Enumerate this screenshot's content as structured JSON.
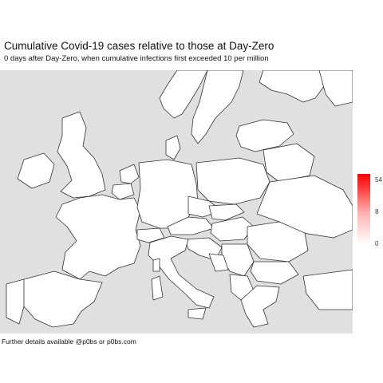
{
  "header": {
    "title": "Cumulative Covid-19 cases relative to those at Day-Zero",
    "subtitle": "0 days after Day-Zero, when cumulative infections first exceeded 10 per million"
  },
  "legend": {
    "ticks": [
      "54",
      "8",
      "0"
    ],
    "color_high": "#ff0000",
    "color_low": "#ffffff"
  },
  "caption": "Further details available @p0bs or p0bs.com",
  "colors": {
    "land": "#ffffff",
    "sea": "#e0e0e0",
    "border": "#333333"
  }
}
